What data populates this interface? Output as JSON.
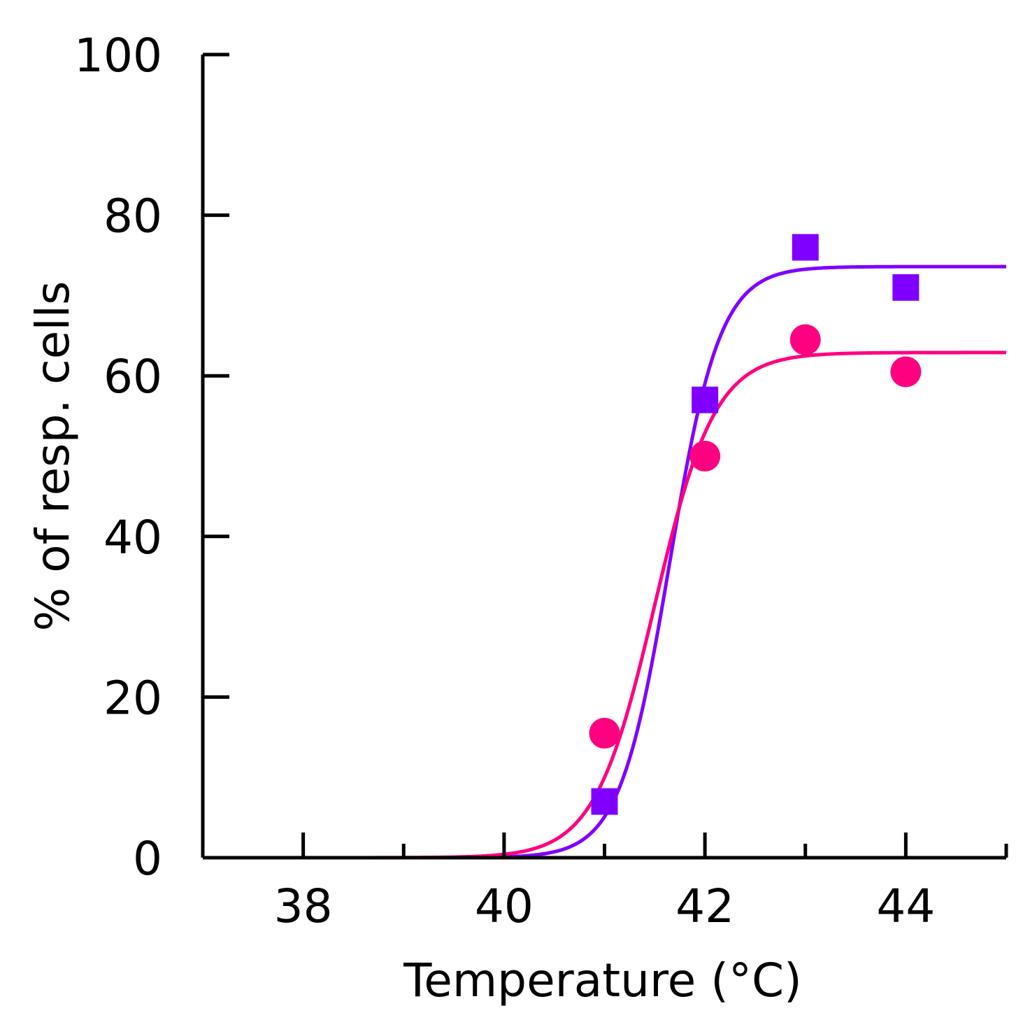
{
  "chart_data": {
    "type": "scatter",
    "title": "",
    "xlabel": "Temperature (°C)",
    "ylabel": "% of resp. cells",
    "xlim": [
      37,
      45
    ],
    "ylim": [
      0,
      100
    ],
    "x_ticks": [
      38,
      40,
      42,
      44
    ],
    "x_minor_ticks": [
      39,
      41,
      43,
      45
    ],
    "y_ticks": [
      0,
      20,
      40,
      60,
      80,
      100
    ],
    "grid": false,
    "legend": "none",
    "series": [
      {
        "name": "squares",
        "marker": "square",
        "color": "#7f00ff",
        "x": [
          41,
          42,
          43,
          44
        ],
        "y": [
          7,
          57,
          76,
          71
        ],
        "fit": {
          "type": "sigmoid",
          "top": 73.6,
          "x50": 41.65,
          "slope": 0.25
        }
      },
      {
        "name": "circles",
        "marker": "circle",
        "color": "#ff0080",
        "x": [
          41,
          42,
          43,
          44
        ],
        "y": [
          15.5,
          50,
          64.5,
          60.5
        ],
        "fit": {
          "type": "sigmoid",
          "top": 62.9,
          "x50": 41.5,
          "slope": 0.3
        }
      }
    ]
  }
}
